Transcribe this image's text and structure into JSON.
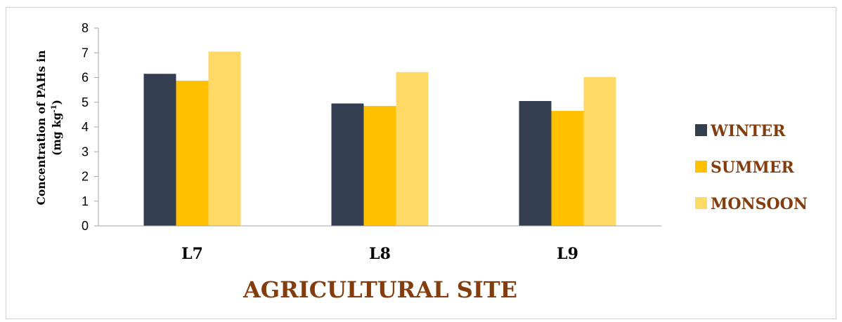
{
  "chart_data": {
    "type": "bar",
    "categories": [
      "L7",
      "L8",
      "L9"
    ],
    "series": [
      {
        "name": "WINTER",
        "values": [
          6.15,
          4.95,
          5.05
        ],
        "color": "#333f50"
      },
      {
        "name": "SUMMER",
        "values": [
          5.87,
          4.85,
          4.65
        ],
        "color": "#ffc000"
      },
      {
        "name": "MONSOON",
        "values": [
          7.05,
          6.22,
          6.02
        ],
        "color": "#ffd966"
      }
    ],
    "xlabel": "AGRICULTURAL SITE",
    "ylabel": {
      "line1": "Concentration of PAHs in",
      "line2_main": "(mg kg",
      "line2_sup": "-1",
      "line2_end": ")"
    },
    "ylim": [
      0,
      8
    ],
    "yticks": [
      "0",
      "1",
      "2",
      "3",
      "4",
      "5",
      "6",
      "7",
      "8"
    ],
    "grid": false,
    "legend_position": "right"
  }
}
